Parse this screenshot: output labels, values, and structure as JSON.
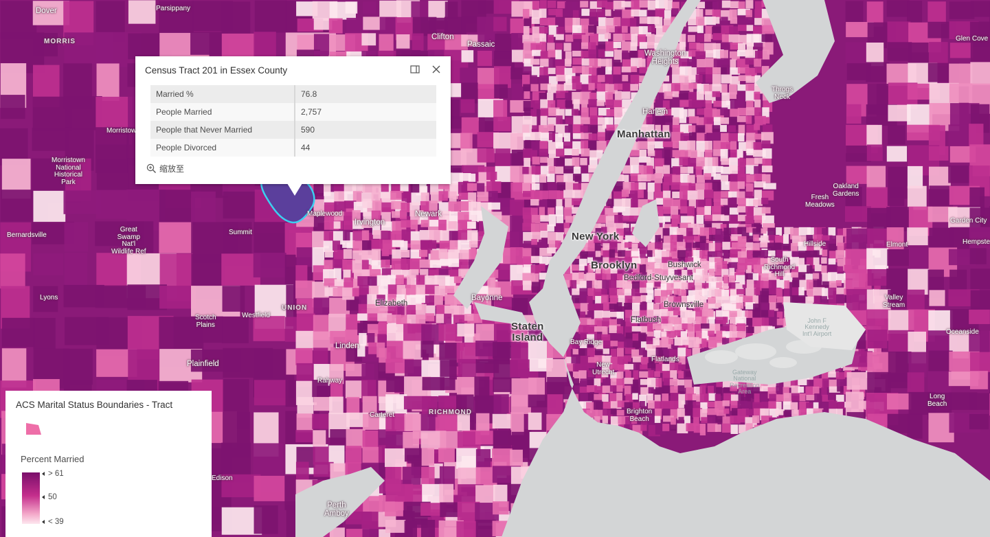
{
  "map": {
    "place_labels": [
      {
        "text": "Dover",
        "cls": "med"
      },
      {
        "text": "Parsippany",
        "cls": "small"
      },
      {
        "text": "MORRIS",
        "cls": "caps"
      },
      {
        "text": "Clifton",
        "cls": "med"
      },
      {
        "text": "Passaic",
        "cls": "med"
      },
      {
        "text": "Glen Cove",
        "cls": "small"
      },
      {
        "text": "Washington\nHeights",
        "cls": "med"
      },
      {
        "text": "Throgs\nNeck",
        "cls": "small"
      },
      {
        "text": "Harlem",
        "cls": "med"
      },
      {
        "text": "Manhattan",
        "cls": "big"
      },
      {
        "text": "Morristown",
        "cls": "small"
      },
      {
        "text": "Morristown\nNational\nHistorical\nPark",
        "cls": "small"
      },
      {
        "text": "Oakland\nGardens",
        "cls": "small"
      },
      {
        "text": "Fresh\nMeadows",
        "cls": "small"
      },
      {
        "text": "Maplewood",
        "cls": "small"
      },
      {
        "text": "Irvington",
        "cls": "med"
      },
      {
        "text": "Newark",
        "cls": "med"
      },
      {
        "text": "Summit",
        "cls": "small"
      },
      {
        "text": "Bernardsville",
        "cls": "small"
      },
      {
        "text": "Great\nSwamp\nNat'l\nWildlife Ref",
        "cls": "small"
      },
      {
        "text": "New York",
        "cls": "big"
      },
      {
        "text": "Garden City",
        "cls": "small"
      },
      {
        "text": "Hempstead",
        "cls": "small"
      },
      {
        "text": "Hillside",
        "cls": "small"
      },
      {
        "text": "Elmont",
        "cls": "small"
      },
      {
        "text": "Brooklyn",
        "cls": "big"
      },
      {
        "text": "Bushwick",
        "cls": "dark"
      },
      {
        "text": "Bedford-Stuyvesant",
        "cls": "dark"
      },
      {
        "text": "South\nRichmond\nHill",
        "cls": "small"
      },
      {
        "text": "Lyons",
        "cls": "small"
      },
      {
        "text": "UNION",
        "cls": "caps"
      },
      {
        "text": "Elizabeth",
        "cls": "dark"
      },
      {
        "text": "Bayonne",
        "cls": "med"
      },
      {
        "text": "Brownsville",
        "cls": "dark"
      },
      {
        "text": "Valley\nStream",
        "cls": "small"
      },
      {
        "text": "Scotch\nPlains",
        "cls": "small"
      },
      {
        "text": "Westfield",
        "cls": "small"
      },
      {
        "text": "Flatbush",
        "cls": "dark"
      },
      {
        "text": "John F\nKennedy\nInt'l Airport",
        "cls": "water"
      },
      {
        "text": "Staten\nIsland",
        "cls": "big"
      },
      {
        "text": "Oceanside",
        "cls": "small"
      },
      {
        "text": "Linden",
        "cls": "med"
      },
      {
        "text": "Bay Ridge",
        "cls": "small"
      },
      {
        "text": "Plainfield",
        "cls": "med"
      },
      {
        "text": "Flatlands",
        "cls": "small"
      },
      {
        "text": "New\nUtrecht",
        "cls": "small"
      },
      {
        "text": "Gateway\nNational\nRecreation\nArea",
        "cls": "water"
      },
      {
        "text": "Rahway",
        "cls": "small"
      },
      {
        "text": "Long\nBeach",
        "cls": "small"
      },
      {
        "text": "Carteret",
        "cls": "small"
      },
      {
        "text": "RICHMOND",
        "cls": "caps"
      },
      {
        "text": "Brighton\nBeach",
        "cls": "small"
      },
      {
        "text": "Edison",
        "cls": "small"
      },
      {
        "text": "Perth\nAmboy",
        "cls": "med"
      }
    ],
    "colors": {
      "land_base": "#8a1a78",
      "water": "#d3d5d6",
      "selection_fill": "#5b3f9c",
      "selection_outline": "#3bd0f0"
    }
  },
  "popup": {
    "title": "Census Tract 201 in Essex County",
    "dock_icon": "dock-icon",
    "close_icon": "close-icon",
    "rows": [
      {
        "key": "Married %",
        "value": "76.8"
      },
      {
        "key": "People Married",
        "value": "2,757"
      },
      {
        "key": "People that Never Married",
        "value": "590"
      },
      {
        "key": "People Divorced",
        "value": "44"
      }
    ],
    "zoom_label": "缩放至",
    "zoom_icon": "zoom-in-icon"
  },
  "legend": {
    "title": "ACS Marital Status Boundaries - Tract",
    "field": "Percent Married",
    "ticks": [
      "> 61",
      "50",
      "< 39"
    ],
    "ramp_colors": [
      "#7a0f6a",
      "#c42e8c",
      "#f3a6c8",
      "#fde7ef"
    ]
  }
}
